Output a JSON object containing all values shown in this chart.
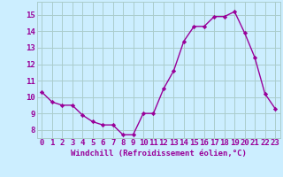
{
  "x": [
    0,
    1,
    2,
    3,
    4,
    5,
    6,
    7,
    8,
    9,
    10,
    11,
    12,
    13,
    14,
    15,
    16,
    17,
    18,
    19,
    20,
    21,
    22,
    23
  ],
  "y": [
    10.3,
    9.7,
    9.5,
    9.5,
    8.9,
    8.5,
    8.3,
    8.3,
    7.7,
    7.7,
    9.0,
    9.0,
    10.5,
    11.6,
    13.4,
    14.3,
    14.3,
    14.9,
    14.9,
    15.2,
    13.9,
    12.4,
    10.2,
    9.3
  ],
  "line_color": "#990099",
  "marker": "D",
  "markersize": 2.2,
  "linewidth": 1.0,
  "xlabel": "Windchill (Refroidissement éolien,°C)",
  "xlabel_fontsize": 6.5,
  "xticks": [
    0,
    1,
    2,
    3,
    4,
    5,
    6,
    7,
    8,
    9,
    10,
    11,
    12,
    13,
    14,
    15,
    16,
    17,
    18,
    19,
    20,
    21,
    22,
    23
  ],
  "yticks": [
    8,
    9,
    10,
    11,
    12,
    13,
    14,
    15
  ],
  "ylim": [
    7.5,
    15.8
  ],
  "xlim": [
    -0.5,
    23.5
  ],
  "bg_color": "#cceeff",
  "grid_color": "#aacccc",
  "tick_color": "#990099",
  "tick_fontsize": 6.5,
  "spine_color": "#aaaaaa"
}
